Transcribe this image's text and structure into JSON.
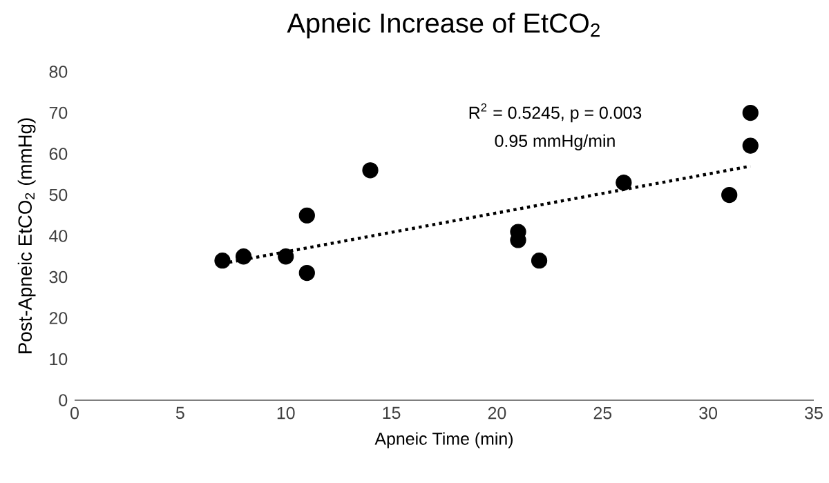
{
  "chart_data": {
    "type": "scatter",
    "title": "Apneic Increase of EtCO$_{2}$",
    "xlabel": "Apneic Time (min)",
    "ylabel": "Post-Apneic EtCO$_{2}$ (mmHg)",
    "annotations": [
      "R$^{2}$ = 0.5245, p = 0.003",
      "0.95 mmHg/min"
    ],
    "series": [
      {
        "color": "#000000",
        "marker": "circle",
        "x": [
          7,
          8,
          10,
          11,
          11,
          14,
          21,
          21,
          22,
          26,
          31,
          32,
          32
        ],
        "values": [
          34,
          35,
          35,
          45,
          31,
          56,
          41,
          39,
          34,
          53,
          50,
          70,
          62
        ]
      },
      {
        "type": "line",
        "color": "#000000",
        "line_style": "dotted",
        "marker": "none",
        "x": [
          7,
          32
        ],
        "values": [
          33.3,
          57
        ]
      }
    ],
    "xlim": [
      0,
      35
    ],
    "ylim": [
      0,
      80
    ],
    "xticks": [
      0,
      5,
      10,
      15,
      20,
      25,
      30,
      35
    ],
    "yticks": [
      0,
      10,
      20,
      30,
      40,
      50,
      60,
      70,
      80
    ],
    "grid": false
  }
}
